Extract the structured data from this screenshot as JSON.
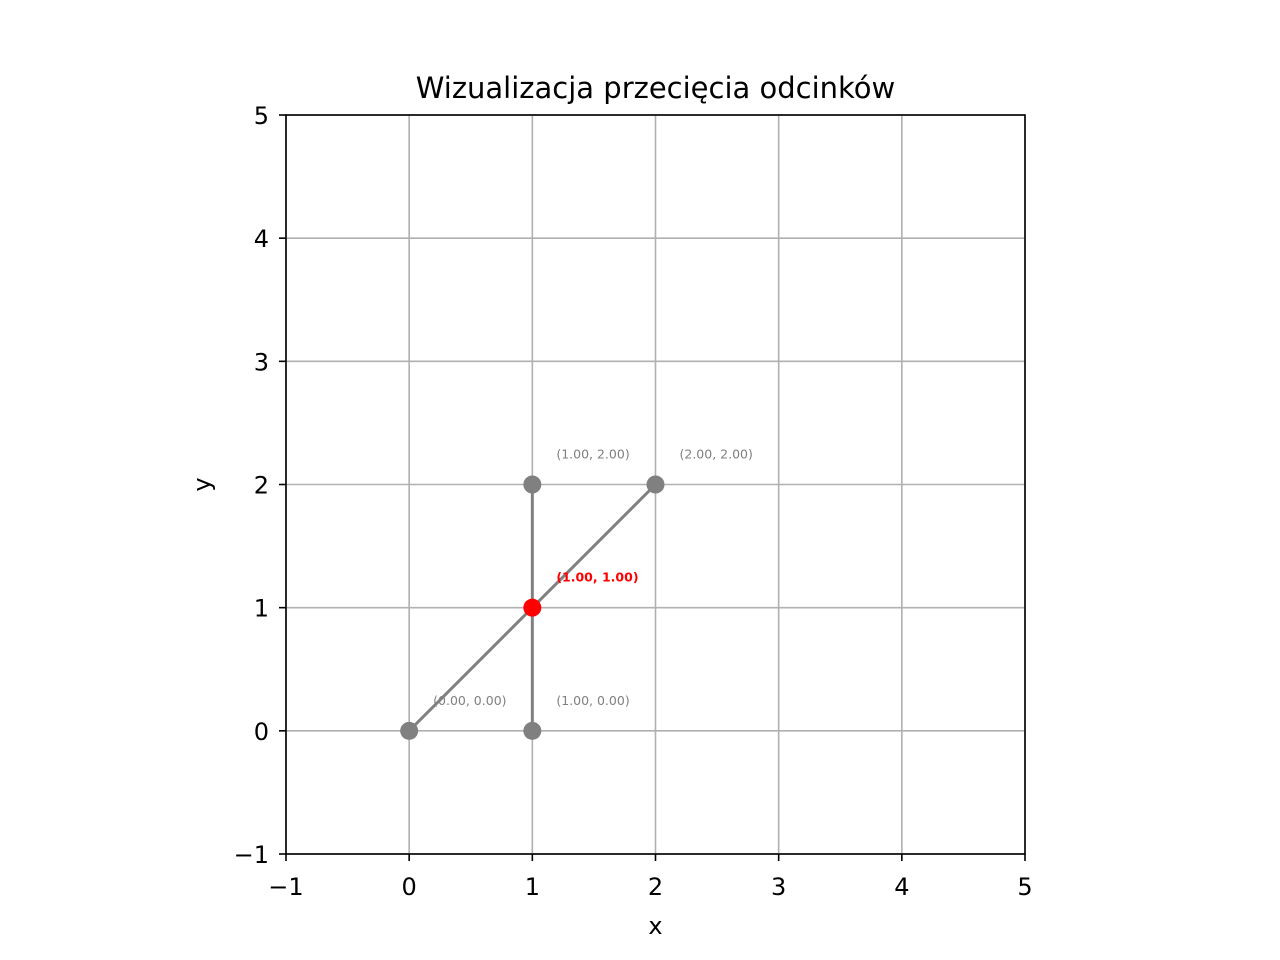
{
  "chart_data": {
    "type": "scatter",
    "title": "Wizualizacja przecięcia odcinków",
    "xlabel": "x",
    "ylabel": "y",
    "xlim": [
      -1,
      5
    ],
    "ylim": [
      -1,
      5
    ],
    "grid": true,
    "xticks": [
      -1,
      0,
      1,
      2,
      3,
      4,
      5
    ],
    "yticks": [
      -1,
      0,
      1,
      2,
      3,
      4,
      5
    ],
    "xtick_labels": [
      "−1",
      "0",
      "1",
      "2",
      "3",
      "4",
      "5"
    ],
    "ytick_labels": [
      "−1",
      "0",
      "1",
      "2",
      "3",
      "4",
      "5"
    ],
    "segments": [
      {
        "x": [
          0,
          2
        ],
        "y": [
          0,
          2
        ],
        "color": "#808080"
      },
      {
        "x": [
          1,
          1
        ],
        "y": [
          0,
          2
        ],
        "color": "#808080"
      }
    ],
    "points": [
      {
        "x": 0,
        "y": 0,
        "label": "(0.00, 0.00)",
        "color": "#808080"
      },
      {
        "x": 2,
        "y": 2,
        "label": "(2.00, 2.00)",
        "color": "#808080"
      },
      {
        "x": 1,
        "y": 0,
        "label": "(1.00, 0.00)",
        "color": "#808080"
      },
      {
        "x": 1,
        "y": 2,
        "label": "(1.00, 2.00)",
        "color": "#808080"
      }
    ],
    "intersection": {
      "x": 1,
      "y": 1,
      "label": "(1.00, 1.00)",
      "color": "#ff0000"
    }
  }
}
